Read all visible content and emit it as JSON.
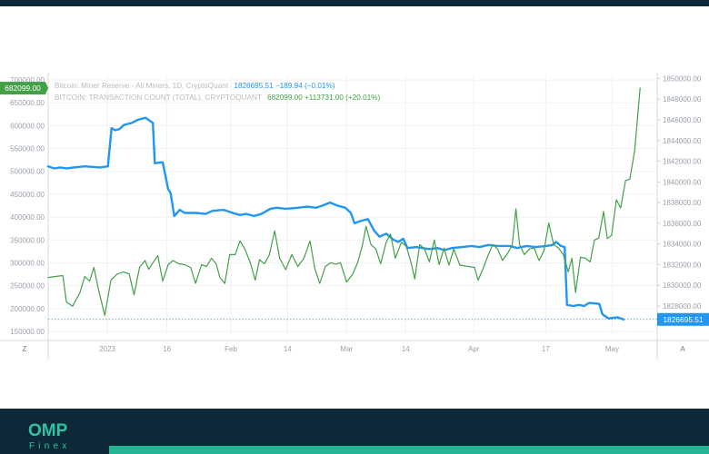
{
  "legend": {
    "series1_name": "Bitcoin: Miner Reserve - All Miners, 1D, CryptoQuant",
    "series1_values": "1826695.51  −189.94 (−0.01%)",
    "series2_name": "BITCOIN: TRANSACTION COUNT (TOTAL), CRYPTOQUANT",
    "series2_values": "682099.00  +113731.00 (+20.01%)"
  },
  "corner_left": "Z",
  "corner_right": "A",
  "logo": {
    "main": "OMP",
    "sub": "Finex"
  },
  "colors": {
    "blue": "#2196f3",
    "green": "#43a047",
    "footer": "#0e2837",
    "accent": "#24b594"
  },
  "chart_data": {
    "type": "line",
    "x_ticks": [
      {
        "label": "2023",
        "t": 0.097
      },
      {
        "label": "16",
        "t": 0.195
      },
      {
        "label": "Feb",
        "t": 0.3
      },
      {
        "label": "14",
        "t": 0.393
      },
      {
        "label": "Mar",
        "t": 0.49
      },
      {
        "label": "14",
        "t": 0.587
      },
      {
        "label": "Apr",
        "t": 0.699
      },
      {
        "label": "17",
        "t": 0.817
      },
      {
        "label": "May",
        "t": 0.926
      }
    ],
    "left_axis": {
      "ylim": [
        140000,
        710000
      ],
      "ticks": [
        {
          "value": 150000,
          "label": "150000.00"
        },
        {
          "value": 200000,
          "label": "200000.00"
        },
        {
          "value": 250000,
          "label": "250000.00"
        },
        {
          "value": 300000,
          "label": "300000.00"
        },
        {
          "value": 350000,
          "label": "350000.00"
        },
        {
          "value": 400000,
          "label": "400000.00"
        },
        {
          "value": 450000,
          "label": "450000.00"
        },
        {
          "value": 500000,
          "label": "500000.00"
        },
        {
          "value": 550000,
          "label": "550000.00"
        },
        {
          "value": 600000,
          "label": "600000.00"
        },
        {
          "value": 650000,
          "label": "650000.00"
        },
        {
          "value": 700000,
          "label": "700000.00"
        }
      ]
    },
    "right_axis": {
      "ylim": [
        1825100,
        1850300
      ],
      "ticks": [
        {
          "value": 1828000,
          "label": "1828000.00"
        },
        {
          "value": 1830000,
          "label": "1830000.00"
        },
        {
          "value": 1832000,
          "label": "1832000.00"
        },
        {
          "value": 1834000,
          "label": "1834000.00"
        },
        {
          "value": 1836000,
          "label": "1836000.00"
        },
        {
          "value": 1838000,
          "label": "1838000.00"
        },
        {
          "value": 1840000,
          "label": "1840000.00"
        },
        {
          "value": 1842000,
          "label": "1842000.00"
        },
        {
          "value": 1844000,
          "label": "1844000.00"
        },
        {
          "value": 1846000,
          "label": "1846000.00"
        },
        {
          "value": 1848000,
          "label": "1848000.00"
        },
        {
          "value": 1850000,
          "label": "1850000.00"
        }
      ]
    },
    "series": [
      {
        "name": "Bitcoin: Miner Reserve - All Miners, 1D, CryptoQuant",
        "axis": "right",
        "color": "#2196f3",
        "last_label": "1826695.51",
        "points": [
          [
            0.0,
            1841500
          ],
          [
            0.01,
            1841300
          ],
          [
            0.02,
            1841400
          ],
          [
            0.03,
            1841300
          ],
          [
            0.042,
            1841400
          ],
          [
            0.06,
            1841500
          ],
          [
            0.085,
            1841400
          ],
          [
            0.098,
            1841500
          ],
          [
            0.104,
            1845200
          ],
          [
            0.11,
            1845000
          ],
          [
            0.117,
            1845100
          ],
          [
            0.124,
            1845500
          ],
          [
            0.137,
            1845700
          ],
          [
            0.147,
            1846000
          ],
          [
            0.16,
            1846200
          ],
          [
            0.172,
            1845700
          ],
          [
            0.175,
            1841800
          ],
          [
            0.188,
            1841900
          ],
          [
            0.197,
            1839300
          ],
          [
            0.201,
            1838900
          ],
          [
            0.207,
            1836700
          ],
          [
            0.216,
            1837300
          ],
          [
            0.224,
            1837000
          ],
          [
            0.243,
            1837000
          ],
          [
            0.258,
            1836900
          ],
          [
            0.27,
            1837200
          ],
          [
            0.288,
            1837300
          ],
          [
            0.303,
            1837000
          ],
          [
            0.315,
            1836800
          ],
          [
            0.325,
            1836900
          ],
          [
            0.338,
            1836700
          ],
          [
            0.35,
            1836900
          ],
          [
            0.365,
            1837400
          ],
          [
            0.375,
            1837500
          ],
          [
            0.39,
            1837400
          ],
          [
            0.41,
            1837500
          ],
          [
            0.425,
            1837600
          ],
          [
            0.44,
            1837500
          ],
          [
            0.45,
            1837700
          ],
          [
            0.463,
            1838000
          ],
          [
            0.475,
            1837700
          ],
          [
            0.488,
            1837500
          ],
          [
            0.497,
            1837000
          ],
          [
            0.503,
            1836000
          ],
          [
            0.512,
            1836200
          ],
          [
            0.525,
            1836400
          ],
          [
            0.535,
            1835300
          ],
          [
            0.544,
            1834700
          ],
          [
            0.555,
            1835000
          ],
          [
            0.567,
            1834400
          ],
          [
            0.575,
            1834200
          ],
          [
            0.583,
            1834500
          ],
          [
            0.59,
            1833600
          ],
          [
            0.605,
            1833700
          ],
          [
            0.625,
            1833500
          ],
          [
            0.64,
            1833600
          ],
          [
            0.65,
            1833400
          ],
          [
            0.663,
            1833600
          ],
          [
            0.68,
            1833700
          ],
          [
            0.695,
            1833800
          ],
          [
            0.708,
            1833700
          ],
          [
            0.723,
            1833900
          ],
          [
            0.738,
            1833800
          ],
          [
            0.758,
            1833800
          ],
          [
            0.77,
            1833600
          ],
          [
            0.785,
            1833800
          ],
          [
            0.8,
            1833700
          ],
          [
            0.818,
            1833800
          ],
          [
            0.828,
            1833900
          ],
          [
            0.834,
            1834200
          ],
          [
            0.842,
            1833800
          ],
          [
            0.848,
            1833700
          ],
          [
            0.852,
            1828100
          ],
          [
            0.862,
            1828000
          ],
          [
            0.872,
            1828100
          ],
          [
            0.88,
            1828000
          ],
          [
            0.888,
            1828300
          ],
          [
            0.905,
            1828200
          ],
          [
            0.91,
            1827200
          ],
          [
            0.92,
            1826800
          ],
          [
            0.935,
            1826900
          ],
          [
            0.945,
            1826700
          ]
        ]
      },
      {
        "name": "BITCOIN: TRANSACTION COUNT (TOTAL), CRYPTOQUANT",
        "axis": "left",
        "color": "#43a047",
        "last_label": "682099.00",
        "points": [
          [
            0.0,
            268000
          ],
          [
            0.012,
            270000
          ],
          [
            0.024,
            272000
          ],
          [
            0.03,
            214000
          ],
          [
            0.04,
            205000
          ],
          [
            0.052,
            234000
          ],
          [
            0.06,
            270000
          ],
          [
            0.068,
            260000
          ],
          [
            0.075,
            290000
          ],
          [
            0.083,
            239000
          ],
          [
            0.093,
            185000
          ],
          [
            0.103,
            262000
          ],
          [
            0.113,
            275000
          ],
          [
            0.123,
            280000
          ],
          [
            0.133,
            276000
          ],
          [
            0.141,
            230000
          ],
          [
            0.15,
            290000
          ],
          [
            0.159,
            305000
          ],
          [
            0.165,
            286000
          ],
          [
            0.172,
            300000
          ],
          [
            0.18,
            316000
          ],
          [
            0.188,
            260000
          ],
          [
            0.197,
            296000
          ],
          [
            0.205,
            305000
          ],
          [
            0.214,
            298000
          ],
          [
            0.224,
            296000
          ],
          [
            0.234,
            290000
          ],
          [
            0.242,
            255000
          ],
          [
            0.252,
            296000
          ],
          [
            0.26,
            292000
          ],
          [
            0.268,
            310000
          ],
          [
            0.276,
            297000
          ],
          [
            0.282,
            268000
          ],
          [
            0.29,
            255000
          ],
          [
            0.298,
            318000
          ],
          [
            0.307,
            318000
          ],
          [
            0.315,
            348000
          ],
          [
            0.323,
            330000
          ],
          [
            0.332,
            300000
          ],
          [
            0.34,
            262000
          ],
          [
            0.347,
            307000
          ],
          [
            0.355,
            298000
          ],
          [
            0.363,
            317000
          ],
          [
            0.372,
            370000
          ],
          [
            0.38,
            310000
          ],
          [
            0.39,
            285000
          ],
          [
            0.4,
            318000
          ],
          [
            0.41,
            292000
          ],
          [
            0.42,
            310000
          ],
          [
            0.43,
            348000
          ],
          [
            0.438,
            286000
          ],
          [
            0.446,
            255000
          ],
          [
            0.455,
            292000
          ],
          [
            0.464,
            300000
          ],
          [
            0.472,
            297000
          ],
          [
            0.48,
            300000
          ],
          [
            0.49,
            258000
          ],
          [
            0.5,
            275000
          ],
          [
            0.508,
            300000
          ],
          [
            0.516,
            338000
          ],
          [
            0.522,
            380000
          ],
          [
            0.53,
            340000
          ],
          [
            0.538,
            330000
          ],
          [
            0.546,
            298000
          ],
          [
            0.555,
            345000
          ],
          [
            0.562,
            363000
          ],
          [
            0.57,
            310000
          ],
          [
            0.58,
            345000
          ],
          [
            0.588,
            336000
          ],
          [
            0.596,
            300000
          ],
          [
            0.602,
            265000
          ],
          [
            0.61,
            340000
          ],
          [
            0.618,
            330000
          ],
          [
            0.626,
            302000
          ],
          [
            0.634,
            350000
          ],
          [
            0.642,
            296000
          ],
          [
            0.65,
            332000
          ],
          [
            0.658,
            295000
          ],
          [
            0.666,
            330000
          ],
          [
            0.676,
            295000
          ],
          [
            0.69,
            292000
          ],
          [
            0.7,
            290000
          ],
          [
            0.706,
            262000
          ],
          [
            0.714,
            287000
          ],
          [
            0.722,
            315000
          ],
          [
            0.73,
            340000
          ],
          [
            0.738,
            330000
          ],
          [
            0.746,
            305000
          ],
          [
            0.754,
            320000
          ],
          [
            0.762,
            338000
          ],
          [
            0.768,
            418000
          ],
          [
            0.774,
            340000
          ],
          [
            0.782,
            318000
          ],
          [
            0.79,
            330000
          ],
          [
            0.798,
            332000
          ],
          [
            0.806,
            305000
          ],
          [
            0.814,
            326000
          ],
          [
            0.822,
            387000
          ],
          [
            0.83,
            340000
          ],
          [
            0.838,
            332000
          ],
          [
            0.846,
            318000
          ],
          [
            0.854,
            280000
          ],
          [
            0.86,
            310000
          ],
          [
            0.866,
            235000
          ],
          [
            0.874,
            312000
          ],
          [
            0.882,
            310000
          ],
          [
            0.89,
            302000
          ],
          [
            0.897,
            350000
          ],
          [
            0.904,
            354000
          ],
          [
            0.912,
            412000
          ],
          [
            0.918,
            353000
          ],
          [
            0.925,
            360000
          ],
          [
            0.933,
            438000
          ],
          [
            0.94,
            420000
          ],
          [
            0.948,
            480000
          ],
          [
            0.955,
            483000
          ],
          [
            0.963,
            545000
          ],
          [
            0.972,
            682000
          ]
        ]
      }
    ]
  }
}
